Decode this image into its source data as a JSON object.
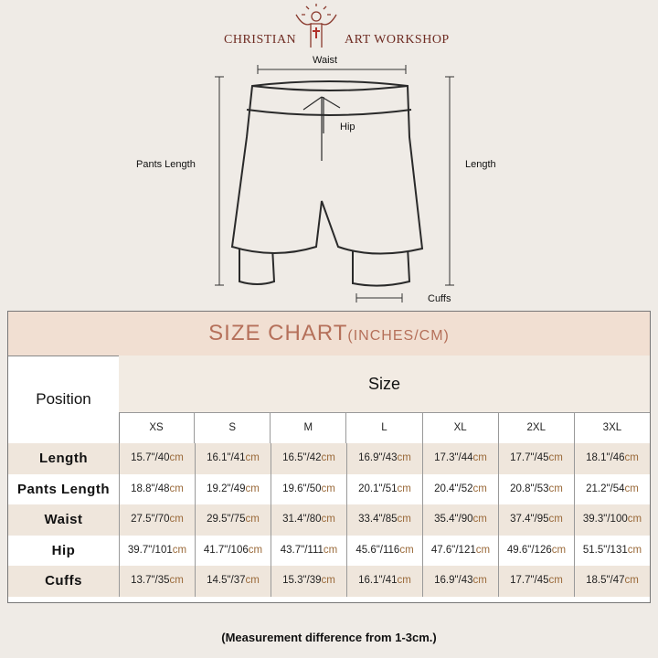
{
  "brand": {
    "left": "CHRISTIAN",
    "right": "ART WORKSHOP",
    "colors": {
      "brand": "#6e2b22"
    }
  },
  "diagram": {
    "waist": "Waist",
    "hip": "Hip",
    "pants_length": "Pants Length",
    "length": "Length",
    "cuffs": "Cuffs"
  },
  "table": {
    "title": "SIZE CHART",
    "title_units": "(INCHES/CM)",
    "position_header": "Position",
    "size_header": "Size",
    "sizes": [
      "XS",
      "S",
      "M",
      "L",
      "XL",
      "2XL",
      "3XL"
    ],
    "unit": "cm",
    "rows": [
      {
        "name": "Length",
        "values": [
          "15.7\"/40",
          "16.1\"/41",
          "16.5\"/42",
          "16.9\"/43",
          "17.3\"/44",
          "17.7\"/45",
          "18.1\"/46"
        ]
      },
      {
        "name": "Pants Length",
        "values": [
          "18.8\"/48",
          "19.2\"/49",
          "19.6\"/50",
          "20.1\"/51",
          "20.4\"/52",
          "20.8\"/53",
          "21.2\"/54"
        ]
      },
      {
        "name": "Waist",
        "values": [
          "27.5\"/70",
          "29.5\"/75",
          "31.4\"/80",
          "33.4\"/85",
          "35.4\"/90",
          "37.4\"/95",
          "39.3\"/100"
        ]
      },
      {
        "name": "Hip",
        "values": [
          "39.7\"/101",
          "41.7\"/106",
          "43.7\"/111",
          "45.6\"/116",
          "47.6\"/121",
          "49.6\"/126",
          "51.5\"/131"
        ]
      },
      {
        "name": "Cuffs",
        "values": [
          "13.7\"/35",
          "14.5\"/37",
          "15.3\"/39",
          "16.1\"/41",
          "16.9\"/43",
          "17.7\"/45",
          "18.5\"/47"
        ]
      }
    ]
  },
  "note": "(Measurement difference from 1-3cm.)"
}
